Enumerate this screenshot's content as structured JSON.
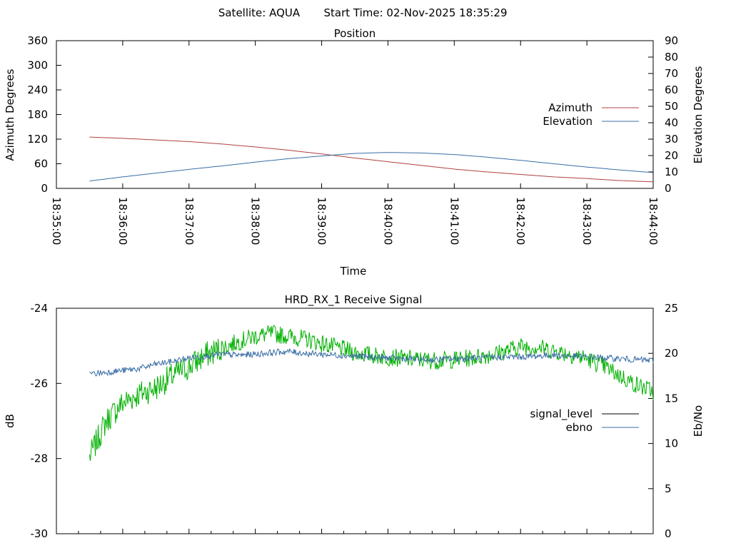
{
  "header": {
    "title": "Satellite: AQUA",
    "start_time": "Start Time: 02-Nov-2025 18:35:29"
  },
  "chart_data": [
    {
      "type": "line",
      "title": "Position",
      "xlabel": "Time",
      "ylabel": "Azimuth Degrees",
      "y2label": "Elevation Degrees",
      "xlim": [
        "18:35:00",
        "18:44:00"
      ],
      "ylim": [
        0,
        360
      ],
      "y2lim": [
        0,
        90
      ],
      "x_ticks": [
        "18:35:00",
        "18:36:00",
        "18:37:00",
        "18:38:00",
        "18:39:00",
        "18:40:00",
        "18:41:00",
        "18:42:00",
        "18:43:00",
        "18:44:00"
      ],
      "y_ticks": [
        0,
        60,
        120,
        180,
        240,
        300,
        360
      ],
      "y2_ticks": [
        0,
        10,
        20,
        30,
        40,
        50,
        60,
        70,
        80,
        90
      ],
      "legend_position": "right",
      "x_minutes": [
        0.5,
        1,
        1.5,
        2,
        2.5,
        3,
        3.5,
        4,
        4.5,
        5,
        5.5,
        6,
        6.5,
        7,
        7.5,
        8,
        8.5,
        9
      ],
      "series": [
        {
          "name": "Azimuth",
          "color": "#b04040",
          "axis": "left",
          "values": [
            125,
            122,
            118,
            114,
            108,
            101,
            93,
            84,
            74,
            65,
            56,
            47,
            40,
            34,
            28,
            24,
            19,
            16
          ]
        },
        {
          "name": "Elevation",
          "color": "#3a6ea5",
          "axis": "right",
          "values": [
            4.5,
            7,
            9.3,
            11.6,
            13.7,
            16,
            18.1,
            19.7,
            21.3,
            21.9,
            21.6,
            20.6,
            19,
            17.1,
            15,
            13,
            11.2,
            9.6
          ]
        }
      ]
    },
    {
      "type": "line",
      "title": "HRD_RX_1 Receive Signal",
      "xlabel": "",
      "ylabel": "dB",
      "y2label": "Eb/No",
      "xlim": [
        "18:35:00",
        "18:44:00"
      ],
      "ylim": [
        -30,
        -24
      ],
      "y2lim": [
        0,
        25
      ],
      "y_ticks": [
        -30,
        -28,
        -26,
        -24
      ],
      "y2_ticks": [
        0,
        5,
        10,
        15,
        20,
        25
      ],
      "legend_position": "right",
      "x_minutes": [
        0.5,
        0.75,
        1,
        1.25,
        1.5,
        1.75,
        2,
        2.25,
        2.5,
        2.75,
        3,
        3.25,
        3.5,
        3.75,
        4,
        4.25,
        4.5,
        4.75,
        5,
        5.25,
        5.5,
        5.75,
        6,
        6.25,
        6.5,
        6.75,
        7,
        7.25,
        7.5,
        7.75,
        8,
        8.25,
        8.5,
        8.75,
        9
      ],
      "series": [
        {
          "name": "signal_level",
          "legend_color": "#000000",
          "color": "#00b000",
          "axis": "right",
          "values": [
            8.5,
            12.5,
            14.5,
            15.5,
            16.2,
            17.5,
            18.5,
            19.8,
            20.6,
            21.3,
            21.9,
            22.2,
            21.9,
            21.6,
            21.1,
            20.6,
            20.1,
            19.8,
            19.6,
            19.4,
            19.3,
            19.2,
            19.3,
            19.5,
            19.8,
            20.2,
            20.8,
            20.7,
            20.3,
            19.9,
            19.4,
            18.6,
            17.5,
            16.5,
            15.8
          ]
        },
        {
          "name": "ebno",
          "legend_color": "#3a6ea5",
          "color": "#3a6ea5",
          "axis": "right",
          "values": [
            17.7,
            17.9,
            18.1,
            18.3,
            18.8,
            19.1,
            19.5,
            19.7,
            19.9,
            19.8,
            19.9,
            20.1,
            20.2,
            20.0,
            19.9,
            19.8,
            19.7,
            19.6,
            19.5,
            19.4,
            19.3,
            19.3,
            19.4,
            19.5,
            19.5,
            19.6,
            19.6,
            19.7,
            19.8,
            19.7,
            19.6,
            19.5,
            19.4,
            19.3,
            19.2
          ]
        }
      ]
    }
  ]
}
